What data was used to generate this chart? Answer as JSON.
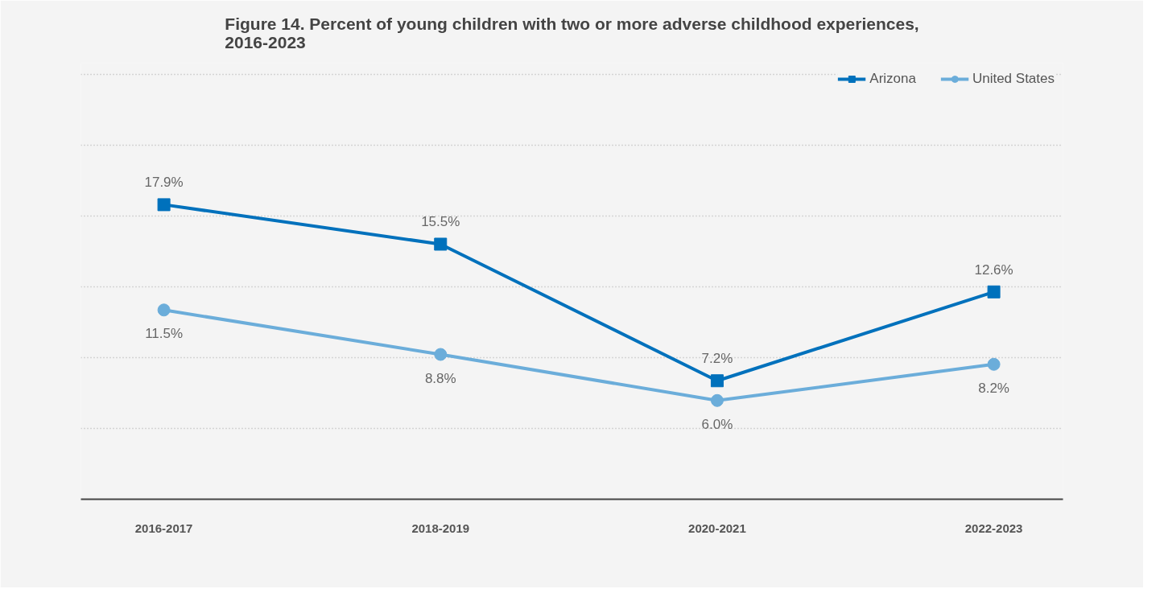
{
  "chart_data": {
    "type": "line",
    "title": "Figure 14. Percent of young children with two or more adverse childhood experiences,\n2016-2023",
    "categories": [
      "2016-2017",
      "2018-2019",
      "2020-2021",
      "2022-2023"
    ],
    "series": [
      {
        "name": "Arizona",
        "color": "#0071bc",
        "values": [
          17.9,
          15.5,
          7.2,
          12.6
        ],
        "value_labels": [
          "17.9%",
          "15.5%",
          "7.2%",
          "12.6%"
        ],
        "marker": "square"
      },
      {
        "name": "United States",
        "color": "#6badda",
        "values": [
          11.5,
          8.8,
          6.0,
          8.2
        ],
        "value_labels": [
          "11.5%",
          "8.8%",
          "6.0%",
          "8.2%"
        ],
        "marker": "circle"
      }
    ],
    "ylim": [
      0,
      26.5
    ],
    "yticks": [
      {
        "value": 4.3,
        "label": null
      },
      {
        "value": 8.6,
        "label": null
      },
      {
        "value": 12.9,
        "label": null
      },
      {
        "value": 17.2,
        "label": null
      },
      {
        "value": 21.5,
        "label": null
      },
      {
        "value": 25.8,
        "label": null
      }
    ],
    "tick_labels": "x",
    "grid": "y",
    "legend": "top right",
    "line_style": "solid"
  }
}
